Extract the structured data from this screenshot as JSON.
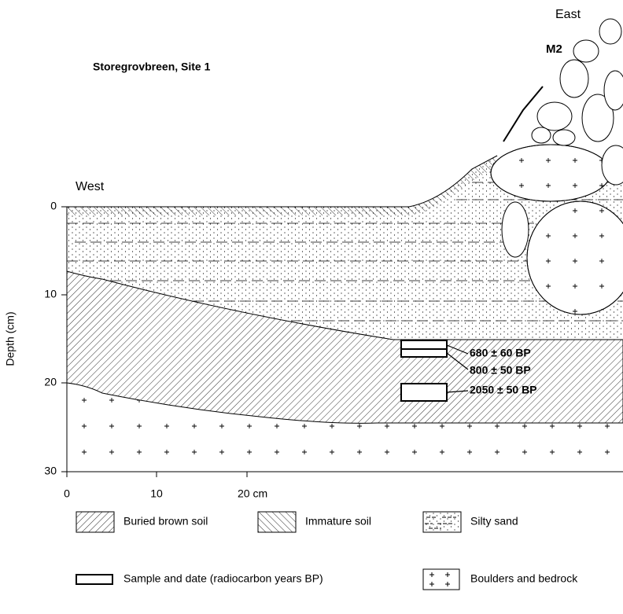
{
  "title": "Storegrovbreen, Site 1",
  "directions": {
    "west": "West",
    "east": "East"
  },
  "moraine_label": "M2",
  "y_axis": {
    "label": "Depth (cm)",
    "ticks": [
      "0",
      "10",
      "20",
      "30"
    ]
  },
  "x_axis": {
    "ticks": [
      "0",
      "10",
      "20 cm"
    ]
  },
  "samples": [
    "680 ± 60 BP",
    "800 ± 50 BP",
    "2050 ± 50 BP"
  ],
  "legend": {
    "buried_soil": "Buried brown soil",
    "immature_soil": "Immature soil",
    "silty_sand": "Silty sand",
    "sample": "Sample and date (radiocarbon years BP)",
    "boulders": "Boulders and bedrock"
  }
}
